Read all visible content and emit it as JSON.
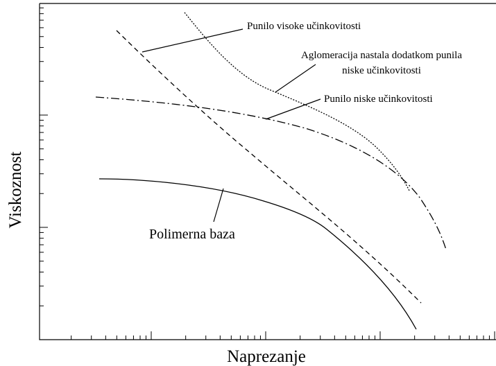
{
  "axes": {
    "x_label": "Naprezanje",
    "y_label": "Viskoznost"
  },
  "labels": {
    "high_filler": "Punilo visoke učinkovitosti",
    "agglomeration": [
      "Aglomeracija nastala dodatkom punila",
      "niske učinkovitosti"
    ],
    "low_filler": "Punilo niske učinkovitosti",
    "polymer_base": "Polimerna baza"
  }
}
